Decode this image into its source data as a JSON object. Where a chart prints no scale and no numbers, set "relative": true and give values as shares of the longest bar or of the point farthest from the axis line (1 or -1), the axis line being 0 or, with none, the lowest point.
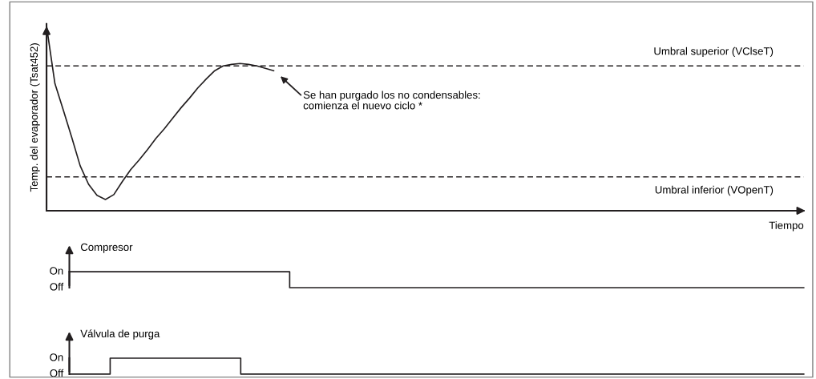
{
  "chart_data": [
    {
      "type": "line",
      "relative": true,
      "ylabel": "Temp. del evaporador (Tsat452)",
      "xlabel": "Tiempo",
      "grid": false,
      "legend": false,
      "categories": [
        null,
        null,
        null,
        null,
        null,
        null,
        null,
        null,
        null,
        null,
        null,
        null,
        null,
        null,
        null,
        null,
        null,
        null,
        null,
        null,
        null,
        null,
        null,
        null,
        null,
        null,
        null,
        null,
        null,
        null,
        null,
        null,
        null,
        null,
        null,
        null,
        null,
        null,
        null,
        null,
        null,
        null,
        null,
        null,
        null,
        null,
        null,
        null,
        null,
        null,
        null,
        null,
        null,
        null,
        null,
        null,
        null,
        null,
        null,
        null,
        null,
        null,
        null,
        null,
        null,
        null,
        null,
        null,
        null,
        null,
        null,
        null,
        null,
        null,
        null,
        null,
        null,
        null,
        null,
        null,
        null,
        null,
        null,
        null,
        null,
        null,
        null,
        null,
        null,
        null,
        null
      ],
      "series": [
        {
          "color": "#231f20",
          "values": [
            1.0,
            0.687,
            0.543,
            0.396,
            0.243,
            0.143,
            0.083,
            0.061,
            0.087,
            0.157,
            0.222,
            0.274,
            0.33,
            0.391,
            0.443,
            0.5,
            0.557,
            0.609,
            0.665,
            0.713,
            0.757,
            0.783,
            0.791,
            0.796,
            0.791,
            0.783,
            0.77,
            0.757,
            null,
            null,
            null,
            null,
            null,
            null,
            null,
            null,
            null,
            null,
            null,
            null,
            null,
            null,
            null,
            null,
            null,
            null,
            null,
            null,
            null,
            null,
            null,
            null,
            null,
            null,
            null,
            null,
            null,
            null,
            null,
            null,
            null,
            null,
            null,
            null,
            null,
            null,
            null,
            null,
            null,
            null,
            null,
            null,
            null,
            null,
            null,
            null,
            null,
            null,
            null,
            null,
            null,
            null,
            null,
            null,
            null,
            null,
            null,
            null,
            null,
            null,
            null
          ]
        }
      ],
      "ref_lines": [
        {
          "axis": "y",
          "value": 0.783,
          "label": "Umbral superior (VClseT)",
          "color": "#231f20",
          "line_style": "dashed"
        },
        {
          "axis": "y",
          "value": 0.183,
          "label": "Umbral inferior (VOpenT)",
          "color": "#231f20",
          "line_style": "dashed"
        }
      ],
      "annotations": [
        "Se han purgado los no condensables:\ncomienza el nuevo ciclo *"
      ]
    },
    {
      "type": "step",
      "title": "Compresor",
      "relative": true,
      "grid": false,
      "legend": false,
      "annotations": [
        "On",
        "Off"
      ],
      "categories": [
        null,
        null,
        null,
        null,
        null,
        null,
        null,
        null,
        null,
        null,
        null,
        null,
        null,
        null,
        null,
        null,
        null,
        null,
        null,
        null,
        null,
        null,
        null,
        null,
        null,
        null,
        null,
        null,
        null,
        null,
        null,
        null,
        null,
        null,
        null,
        null,
        null,
        null,
        null,
        null,
        null,
        null,
        null,
        null,
        null,
        null,
        null,
        null,
        null,
        null,
        null,
        null,
        null,
        null,
        null,
        null,
        null,
        null,
        null,
        null,
        null,
        null,
        null,
        null,
        null,
        null,
        null,
        null,
        null,
        null,
        null,
        null,
        null,
        null,
        null,
        null,
        null,
        null,
        null,
        null,
        null,
        null,
        null,
        null,
        null,
        null,
        null,
        null,
        null,
        null,
        null
      ],
      "series": [
        {
          "color": "#231f20",
          "values": [
            1,
            1,
            1,
            1,
            1,
            1,
            1,
            1,
            1,
            1,
            1,
            1,
            1,
            1,
            1,
            1,
            1,
            1,
            1,
            1,
            1,
            1,
            1,
            1,
            1,
            1,
            1,
            0,
            0,
            0,
            0,
            0,
            0,
            0,
            0,
            0,
            0,
            0,
            0,
            0,
            0,
            0,
            0,
            0,
            0,
            0,
            0,
            0,
            0,
            0,
            0,
            0,
            0,
            0,
            0,
            0,
            0,
            0,
            0,
            0,
            0,
            0,
            0,
            0,
            0,
            0,
            0,
            0,
            0,
            0,
            0,
            0,
            0,
            0,
            0,
            0,
            0,
            0,
            0,
            0,
            0,
            0,
            0,
            0,
            0,
            0,
            0,
            0,
            0,
            0,
            0
          ]
        }
      ]
    },
    {
      "type": "step",
      "title": "Válvula de purga",
      "relative": true,
      "grid": false,
      "legend": false,
      "annotations": [
        "On",
        "Off"
      ],
      "categories": [
        null,
        null,
        null,
        null,
        null,
        null,
        null,
        null,
        null,
        null,
        null,
        null,
        null,
        null,
        null,
        null,
        null,
        null,
        null,
        null,
        null,
        null,
        null,
        null,
        null,
        null,
        null,
        null,
        null,
        null,
        null,
        null,
        null,
        null,
        null,
        null,
        null,
        null,
        null,
        null,
        null,
        null,
        null,
        null,
        null,
        null,
        null,
        null,
        null,
        null,
        null,
        null,
        null,
        null,
        null,
        null,
        null,
        null,
        null,
        null,
        null,
        null,
        null,
        null,
        null,
        null,
        null,
        null,
        null,
        null,
        null,
        null,
        null,
        null,
        null,
        null,
        null,
        null,
        null,
        null,
        null,
        null,
        null,
        null,
        null,
        null,
        null,
        null,
        null,
        null,
        null
      ],
      "series": [
        {
          "color": "#231f20",
          "values": [
            0,
            0,
            0,
            0,
            0,
            1,
            1,
            1,
            1,
            1,
            1,
            1,
            1,
            1,
            1,
            1,
            1,
            1,
            1,
            1,
            1,
            0,
            0,
            0,
            0,
            0,
            0,
            0,
            0,
            0,
            0,
            0,
            0,
            0,
            0,
            0,
            0,
            0,
            0,
            0,
            0,
            0,
            0,
            0,
            0,
            0,
            0,
            0,
            0,
            0,
            0,
            0,
            0,
            0,
            0,
            0,
            0,
            0,
            0,
            0,
            0,
            0,
            0,
            0,
            0,
            0,
            0,
            0,
            0,
            0,
            0,
            0,
            0,
            0,
            0,
            0,
            0,
            0,
            0,
            0,
            0,
            0,
            0,
            0,
            0,
            0,
            0,
            0,
            0,
            0,
            0
          ]
        }
      ]
    }
  ]
}
